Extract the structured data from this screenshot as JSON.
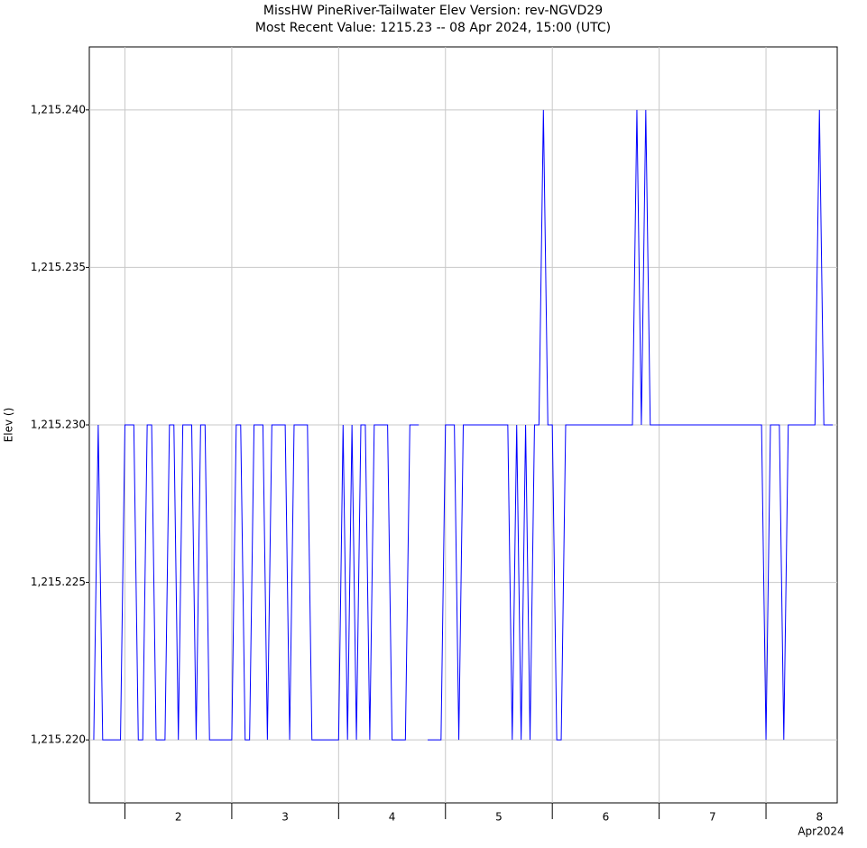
{
  "chart_data": {
    "type": "line",
    "title": "MissHW  PineRiver-Tailwater  Elev  Version: rev-NGVD29",
    "subtitle": "Most Recent Value: 1215.23  --  08 Apr 2024, 15:00 (UTC)",
    "y_label": "Elev ()",
    "x_annotation": "Apr2024",
    "x": [
      "2024-04-01T17:00",
      "2024-04-01T18:00",
      "2024-04-01T19:00",
      "2024-04-01T23:00",
      "2024-04-02T00:00",
      "2024-04-02T02:00",
      "2024-04-02T03:00",
      "2024-04-02T04:00",
      "2024-04-02T05:00",
      "2024-04-02T06:00",
      "2024-04-02T07:00",
      "2024-04-02T09:00",
      "2024-04-02T10:00",
      "2024-04-02T11:00",
      "2024-04-02T12:00",
      "2024-04-02T13:00",
      "2024-04-02T15:00",
      "2024-04-02T16:00",
      "2024-04-02T17:00",
      "2024-04-02T18:00",
      "2024-04-02T19:00",
      "2024-04-03T00:00",
      "2024-04-03T01:00",
      "2024-04-03T02:00",
      "2024-04-03T03:00",
      "2024-04-03T04:00",
      "2024-04-03T05:00",
      "2024-04-03T07:00",
      "2024-04-03T08:00",
      "2024-04-03T09:00",
      "2024-04-03T12:00",
      "2024-04-03T13:00",
      "2024-04-03T14:00",
      "2024-04-03T17:00",
      "2024-04-03T18:00",
      "2024-04-04T00:00",
      "2024-04-04T01:00",
      "2024-04-04T02:00",
      "2024-04-04T03:00",
      "2024-04-04T04:00",
      "2024-04-04T05:00",
      "2024-04-04T06:00",
      "2024-04-04T07:00",
      "2024-04-04T08:00",
      "2024-04-04T11:00",
      "2024-04-04T12:00",
      "2024-04-04T15:00",
      "2024-04-04T16:00",
      "2024-04-04T18:00",
      "2024-04-04T19:00",
      "2024-04-04T20:00",
      "2024-04-04T23:00",
      "2024-04-05T00:00",
      "2024-04-05T02:00",
      "2024-04-05T03:00",
      "2024-04-05T04:00",
      "2024-04-05T14:00",
      "2024-04-05T15:00",
      "2024-04-05T16:00",
      "2024-04-05T17:00",
      "2024-04-05T18:00",
      "2024-04-05T19:00",
      "2024-04-05T20:00",
      "2024-04-05T21:00",
      "2024-04-05T22:00",
      "2024-04-05T23:00",
      "2024-04-06T00:00",
      "2024-04-06T01:00",
      "2024-04-06T02:00",
      "2024-04-06T03:00",
      "2024-04-06T18:00",
      "2024-04-06T19:00",
      "2024-04-06T20:00",
      "2024-04-06T21:00",
      "2024-04-06T22:00",
      "2024-04-07T23:00",
      "2024-04-08T00:00",
      "2024-04-08T01:00",
      "2024-04-08T03:00",
      "2024-04-08T04:00",
      "2024-04-08T05:00",
      "2024-04-08T11:00",
      "2024-04-08T12:00",
      "2024-04-08T13:00",
      "2024-04-08T15:00"
    ],
    "series": [
      {
        "name": "Elev",
        "color": "#0000ff",
        "values": [
          1215.22,
          1215.23,
          1215.22,
          1215.22,
          1215.23,
          1215.23,
          1215.22,
          1215.22,
          1215.23,
          1215.23,
          1215.22,
          1215.22,
          1215.23,
          1215.23,
          1215.22,
          1215.23,
          1215.23,
          1215.22,
          1215.23,
          1215.23,
          1215.22,
          1215.22,
          1215.23,
          1215.23,
          1215.22,
          1215.22,
          1215.23,
          1215.23,
          1215.22,
          1215.23,
          1215.23,
          1215.22,
          1215.23,
          1215.23,
          1215.22,
          1215.22,
          1215.23,
          1215.22,
          1215.23,
          1215.22,
          1215.23,
          1215.23,
          1215.22,
          1215.23,
          1215.23,
          1215.22,
          1215.22,
          1215.23,
          1215.23,
          null,
          1215.22,
          1215.22,
          1215.23,
          1215.23,
          1215.22,
          1215.23,
          1215.23,
          1215.22,
          1215.23,
          1215.22,
          1215.23,
          1215.22,
          1215.23,
          1215.23,
          1215.24,
          1215.23,
          1215.23,
          1215.22,
          1215.22,
          1215.23,
          1215.23,
          1215.24,
          1215.23,
          1215.24,
          1215.23,
          1215.23,
          1215.22,
          1215.23,
          1215.23,
          1215.22,
          1215.23,
          1215.23,
          1215.24,
          1215.23,
          1215.23
        ]
      }
    ],
    "xlim": [
      "2024-04-01T16:00",
      "2024-04-08T16:00"
    ],
    "xticks": [
      {
        "value": "2024-04-02T00:00",
        "label": "2"
      },
      {
        "value": "2024-04-03T00:00",
        "label": "3"
      },
      {
        "value": "2024-04-04T00:00",
        "label": "4"
      },
      {
        "value": "2024-04-05T00:00",
        "label": "5"
      },
      {
        "value": "2024-04-06T00:00",
        "label": "6"
      },
      {
        "value": "2024-04-07T00:00",
        "label": "7"
      },
      {
        "value": "2024-04-08T00:00",
        "label": "8"
      }
    ],
    "ylim": [
      1215.218,
      1215.242
    ],
    "yticks": [
      {
        "value": 1215.22,
        "label": "1,215.220"
      },
      {
        "value": 1215.225,
        "label": "1,215.225"
      },
      {
        "value": 1215.23,
        "label": "1,215.230"
      },
      {
        "value": 1215.235,
        "label": "1,215.235"
      },
      {
        "value": 1215.24,
        "label": "1,215.240"
      }
    ],
    "grid": true
  }
}
